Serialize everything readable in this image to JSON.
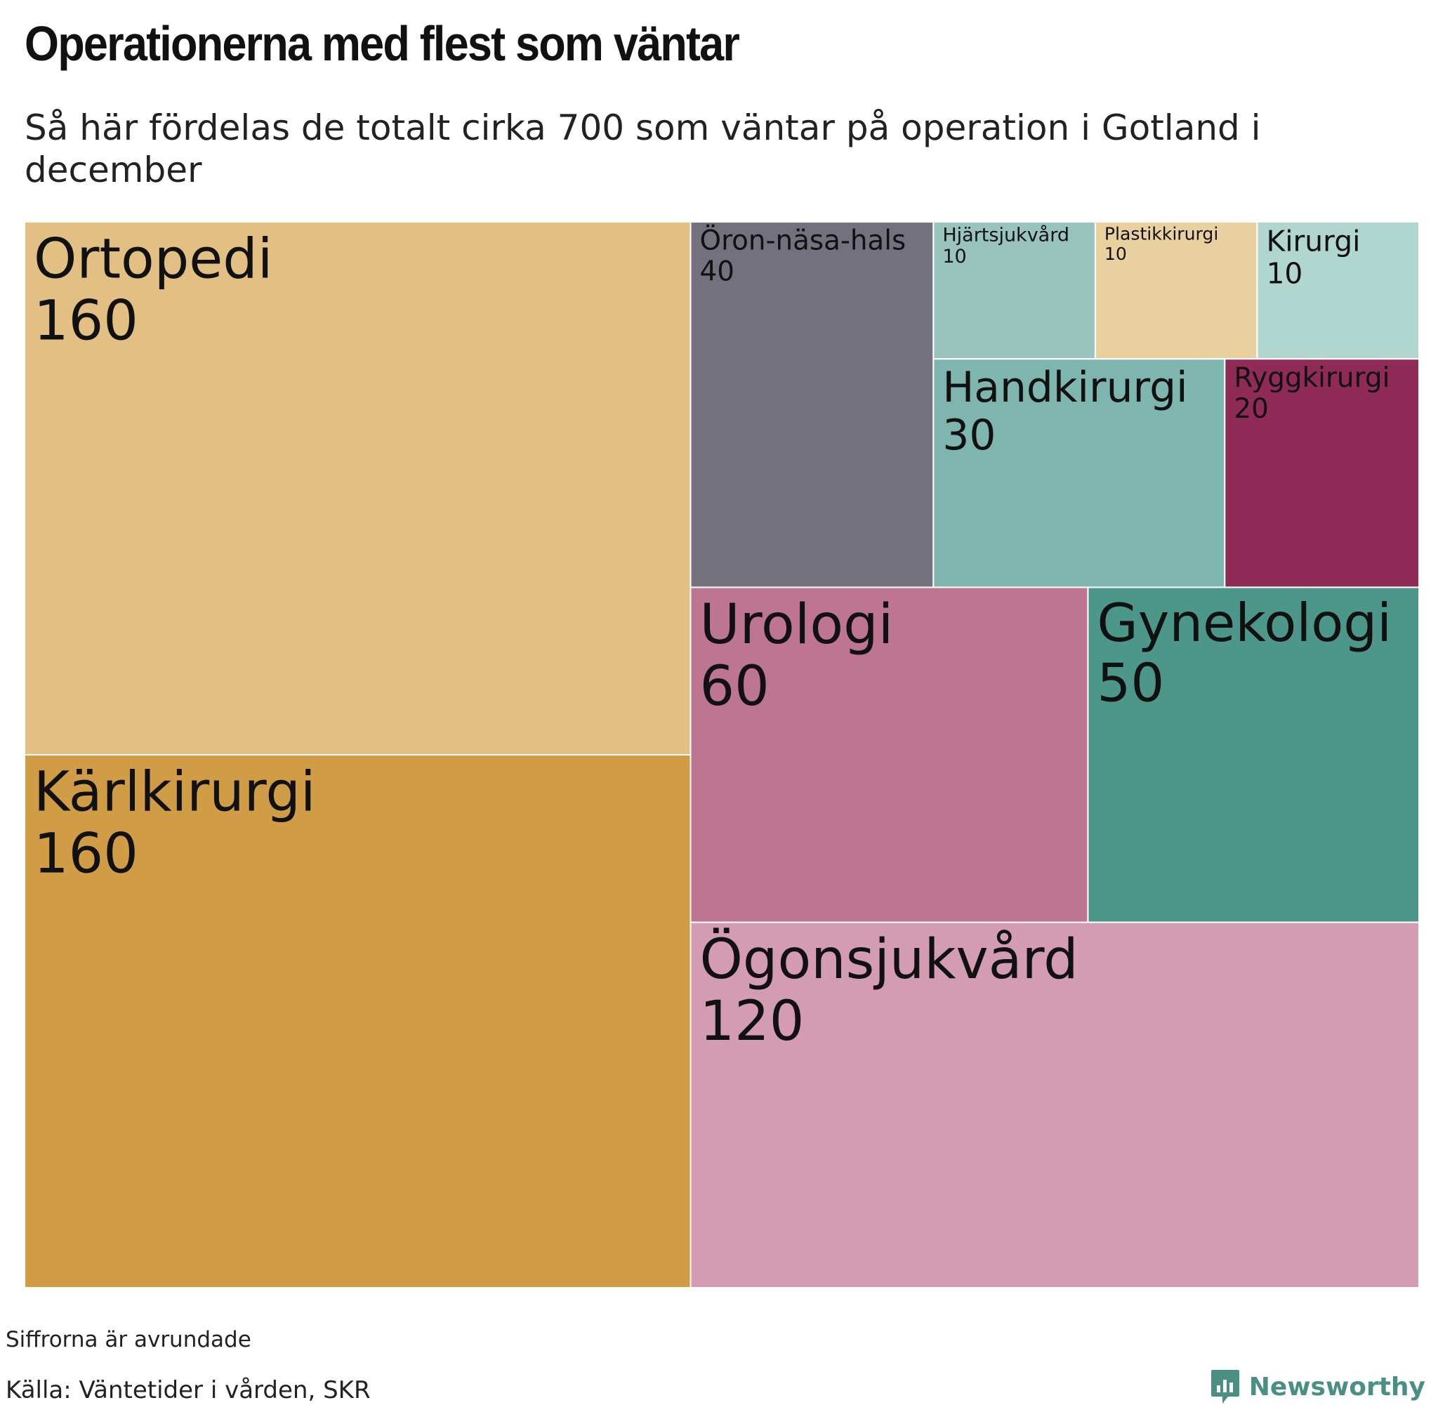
{
  "title": "Operationerna med flest som väntar",
  "subtitle": "Så här fördelas de totalt cirka 700 som väntar på operation i Gotland i december",
  "footer": {
    "note": "Siffrorna är avrundade",
    "source": "Källa: Väntetider i vården, SKR",
    "brand": "Newsworthy",
    "brand_icon": "speech-bubble-chart-icon",
    "brand_color": "#4a8f84"
  },
  "chart_data": {
    "type": "treemap",
    "title": "Operationerna med flest som väntar",
    "subtitle": "Så här fördelas de totalt cirka 700 som väntar på operation i Gotland i december",
    "items": [
      {
        "name": "Ortopedi",
        "value": 160,
        "color": "#e2bf83"
      },
      {
        "name": "Kärlkirurgi",
        "value": 160,
        "color": "#d09c46"
      },
      {
        "name": "Öron-näsa-hals",
        "value": 40,
        "color": "#74717f"
      },
      {
        "name": "Hjärtsjukvård",
        "value": 10,
        "color": "#99c4be"
      },
      {
        "name": "Plastikkirurgi",
        "value": 10,
        "color": "#e9d09f"
      },
      {
        "name": "Kirurgi",
        "value": 10,
        "color": "#b1d6d0"
      },
      {
        "name": "Handkirurgi",
        "value": 30,
        "color": "#7eb5ae"
      },
      {
        "name": "Ryggkirurgi",
        "value": 20,
        "color": "#902b57"
      },
      {
        "name": "Urologi",
        "value": 60,
        "color": "#be7591"
      },
      {
        "name": "Gynekologi",
        "value": 50,
        "color": "#4d968a"
      },
      {
        "name": "Ögonsjukvård",
        "value": 120,
        "color": "#d39cb3"
      }
    ]
  }
}
